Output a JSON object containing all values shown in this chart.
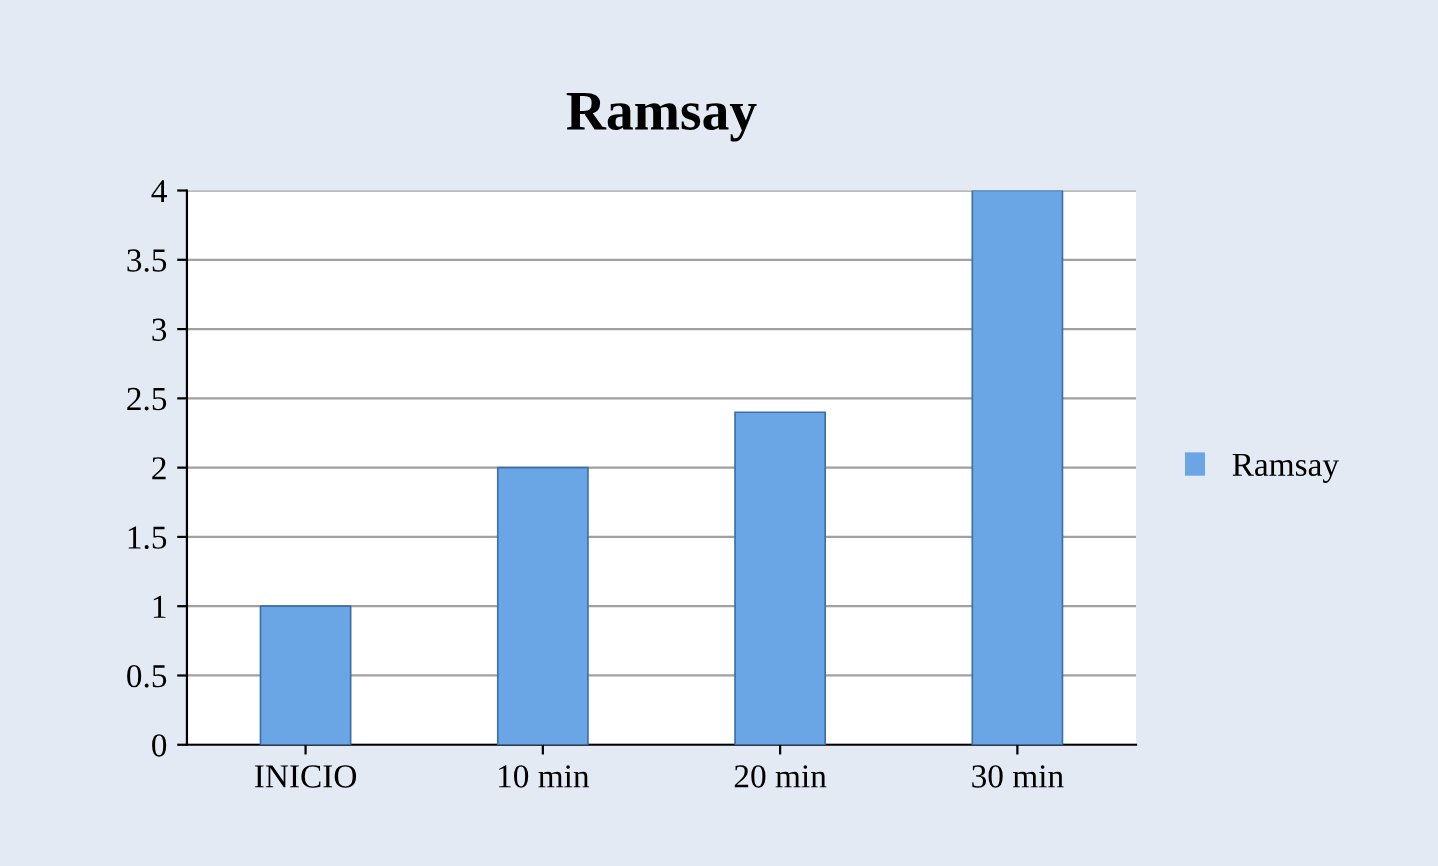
{
  "chart_data": {
    "type": "bar",
    "title": "Ramsay",
    "categories": [
      "INICIO",
      "10 min",
      "20 min",
      "30 min"
    ],
    "series": [
      {
        "name": "Ramsay",
        "color": "#6aa5e6",
        "values": [
          1,
          2,
          2.4,
          4
        ]
      }
    ],
    "ylim": [
      0,
      4
    ],
    "yticks": [
      0,
      0.5,
      1,
      1.5,
      2,
      2.5,
      3,
      3.5,
      4
    ],
    "grid": "y",
    "legend": "right"
  }
}
